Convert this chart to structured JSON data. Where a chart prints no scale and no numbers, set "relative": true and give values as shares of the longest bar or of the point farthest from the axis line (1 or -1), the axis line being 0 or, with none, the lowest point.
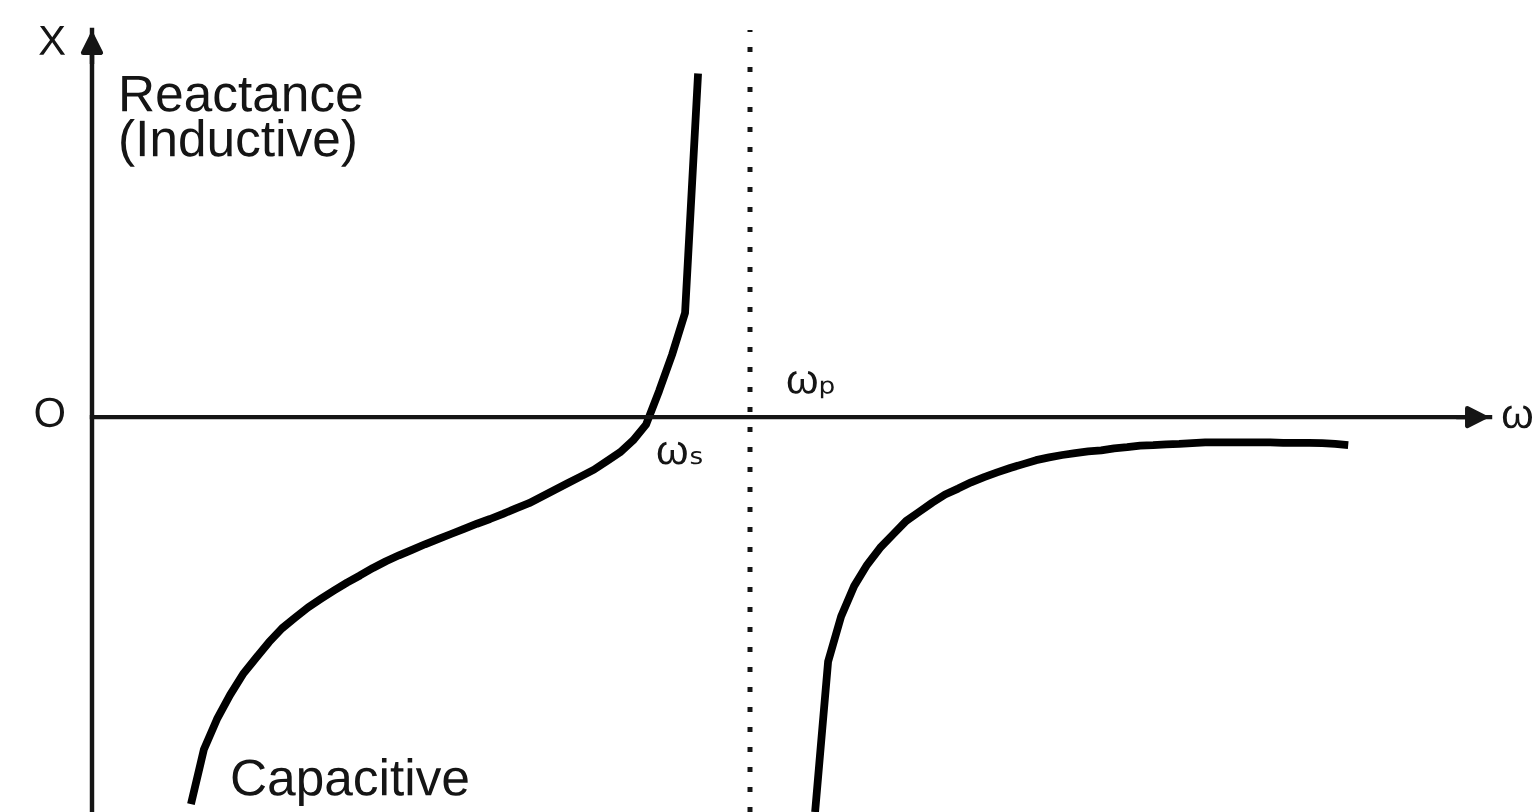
{
  "chart_data": {
    "type": "line",
    "relative": true,
    "xlabel": "ω",
    "categories": [
      null,
      null,
      null,
      null,
      null,
      null,
      null,
      null,
      null,
      null,
      null,
      null,
      null,
      null,
      null,
      null,
      null,
      null,
      null,
      null,
      null,
      null,
      null,
      null,
      null,
      null,
      null,
      null,
      null,
      null,
      null,
      null,
      null,
      null,
      null,
      null,
      null,
      null,
      null,
      null,
      null,
      null,
      null,
      null,
      null,
      null,
      null,
      null,
      null,
      null,
      null,
      null,
      null,
      null,
      null,
      null,
      null,
      null,
      null,
      null,
      null,
      null,
      null,
      null,
      null,
      null,
      null,
      null,
      null,
      null,
      null,
      null,
      null,
      null,
      null,
      null,
      null,
      null,
      null,
      null,
      null,
      null,
      null,
      null,
      null,
      null,
      null,
      null,
      null,
      null
    ],
    "series": [
      {
        "color": "#000000",
        "values": [
          -0.98,
          -0.841,
          -0.765,
          -0.704,
          -0.651,
          -0.61,
          -0.57,
          -0.535,
          -0.508,
          -0.482,
          -0.46,
          -0.439,
          -0.419,
          -0.401,
          -0.382,
          -0.365,
          -0.35,
          -0.336,
          -0.322,
          -0.309,
          -0.296,
          -0.283,
          -0.27,
          -0.258,
          -0.245,
          -0.231,
          -0.218,
          -0.201,
          -0.184,
          -0.167,
          -0.15,
          -0.133,
          -0.111,
          -0.089,
          -0.059,
          -0.019,
          0.066,
          0.158,
          0.264,
          0.87,
          null,
          null,
          null,
          null,
          null,
          null,
          null,
          null,
          null,
          null,
          null,
          null,
          null,
          null,
          null,
          null,
          null,
          null,
          null,
          null,
          null,
          null,
          null,
          null,
          null,
          null,
          null,
          null,
          null,
          null,
          null,
          null,
          null,
          null,
          null,
          null,
          null,
          null,
          null,
          null,
          null,
          null,
          null,
          null,
          null,
          null,
          null,
          null,
          null,
          null
        ]
      },
      {
        "color": "#000000",
        "values": [
          null,
          null,
          null,
          null,
          null,
          null,
          null,
          null,
          null,
          null,
          null,
          null,
          null,
          null,
          null,
          null,
          null,
          null,
          null,
          null,
          null,
          null,
          null,
          null,
          null,
          null,
          null,
          null,
          null,
          null,
          null,
          null,
          null,
          null,
          null,
          null,
          null,
          null,
          null,
          null,
          null,
          null,
          null,
          null,
          null,
          null,
          null,
          null,
          -1,
          -0.619,
          -0.505,
          -0.428,
          -0.374,
          -0.331,
          -0.297,
          -0.263,
          -0.24,
          -0.217,
          -0.196,
          -0.181,
          -0.165,
          -0.152,
          -0.14,
          -0.129,
          -0.119,
          -0.109,
          -0.102,
          -0.096,
          -0.091,
          -0.087,
          -0.084,
          -0.079,
          -0.076,
          -0.072,
          -0.071,
          -0.069,
          -0.068,
          -0.066,
          -0.064,
          -0.064,
          -0.064,
          -0.064,
          -0.064,
          -0.064,
          -0.065,
          -0.065,
          -0.065,
          -0.066,
          -0.068,
          -0.071
        ]
      }
    ],
    "annotations": [
      "X",
      "O",
      "ωₛ",
      "ωₚ",
      "Reactance\n(Inductive)",
      "Capacitive"
    ]
  }
}
